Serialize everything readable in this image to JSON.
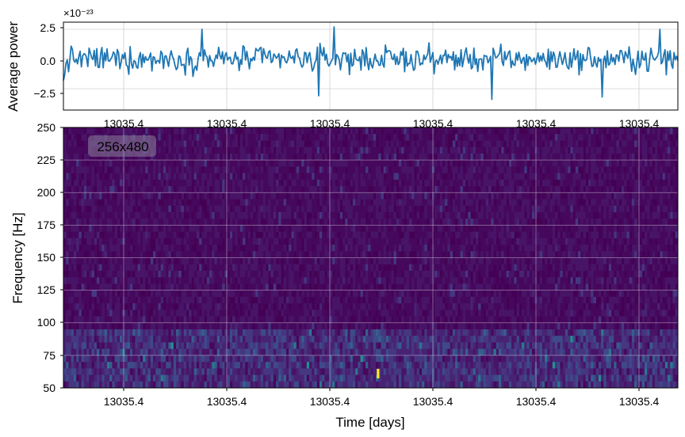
{
  "figure": {
    "top_panel": {
      "ylabel": "Average power",
      "exponent_label": "×10⁻²³",
      "y_ticks": [
        "2.5",
        "0.0",
        "−2.5"
      ],
      "x_ticks": [
        "13035.4",
        "13035.4",
        "13035.4",
        "13035.4",
        "13035.4",
        "13035.4"
      ]
    },
    "bottom_panel": {
      "ylabel": "Frequency [Hz]",
      "xlabel": "Time [days]",
      "badge": "256x480",
      "y_ticks": [
        "250",
        "225",
        "200",
        "175",
        "150",
        "125",
        "100",
        "75",
        "50"
      ],
      "x_ticks": [
        "13035.4",
        "13035.4",
        "13035.4",
        "13035.4",
        "13035.4",
        "13035.4"
      ]
    }
  },
  "chart_data": [
    {
      "type": "line",
      "title": "",
      "xlabel": "",
      "ylabel": "Average power",
      "y_scale_factor": "1e-23",
      "ylim": [
        -4.3,
        3.1
      ],
      "y_tick_values": [
        2.5,
        0.0,
        -2.5
      ],
      "grid": true,
      "color": "#1f77b4",
      "n_points": 480,
      "series": [
        {
          "values_description": "noisy trace fluctuating around 0 between about -3.4 and +2.7 (x10^-23)",
          "notable_extremes": [
            {
              "index_fraction": 0.44,
              "value": 2.7
            },
            {
              "index_fraction": 0.415,
              "value": -3.1
            },
            {
              "index_fraction": 0.697,
              "value": -3.4
            },
            {
              "index_fraction": 0.876,
              "value": -3.2
            },
            {
              "index_fraction": 0.226,
              "value": 2.5
            },
            {
              "index_fraction": 0.97,
              "value": 2.5
            }
          ]
        }
      ]
    },
    {
      "type": "heatmap",
      "title": "",
      "xlabel": "Time [days]",
      "ylabel": "Frequency [Hz]",
      "ylim": [
        50,
        250
      ],
      "y_tick_values": [
        250,
        225,
        200,
        175,
        150,
        125,
        100,
        75,
        50
      ],
      "grid": true,
      "colormap": "viridis",
      "shape": "256x480",
      "annotation": "256x480",
      "hot_band_hz": [
        50,
        95
      ],
      "brightest_cell": {
        "time_fraction": 0.51,
        "frequency_hz": 61
      }
    }
  ]
}
